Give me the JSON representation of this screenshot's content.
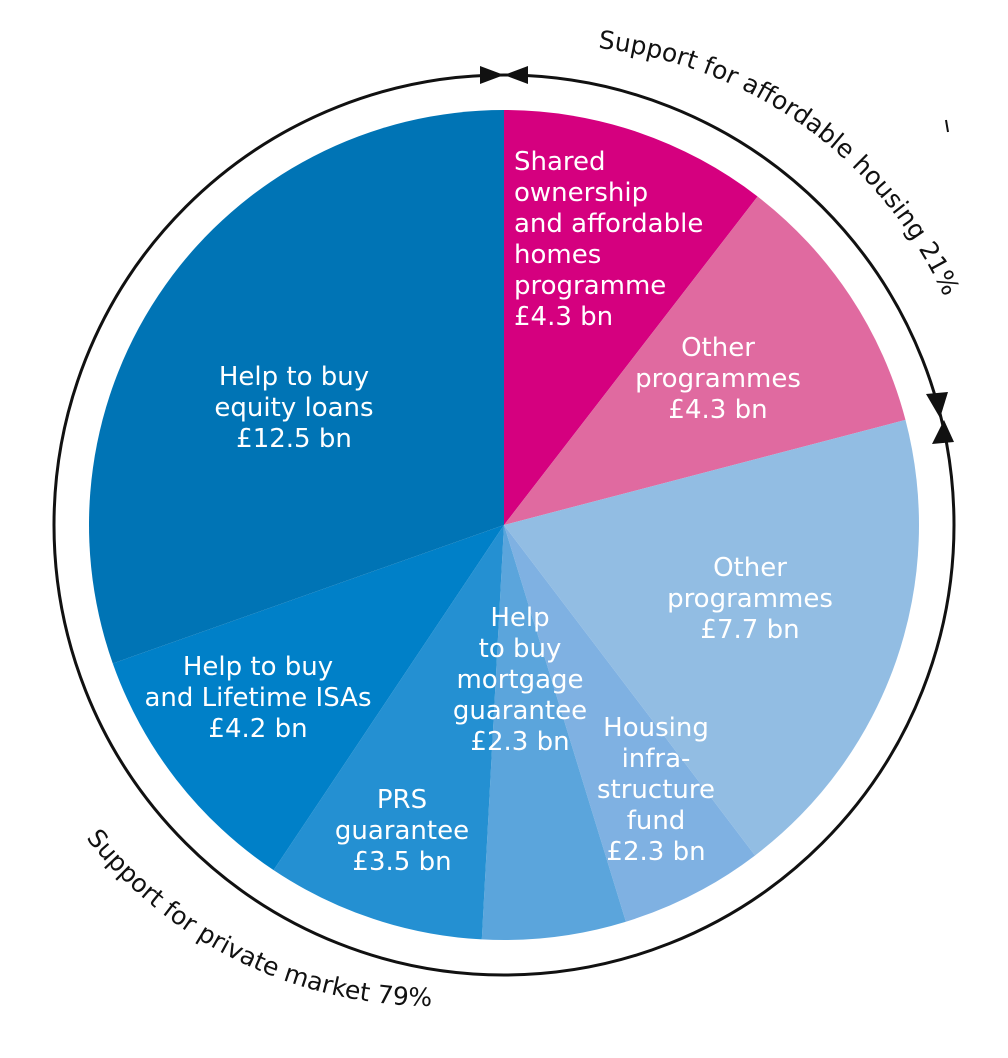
{
  "chart_data": {
    "type": "pie",
    "unit": "£ bn",
    "slices": [
      {
        "name": "shared-ownership",
        "label_lines": [
          "Shared",
          "ownership",
          "and affordable",
          "homes",
          "programme",
          "£4.3 bn"
        ],
        "value": 4.3,
        "color": "#d5007f",
        "group": "affordable"
      },
      {
        "name": "other-programmes-affordable",
        "label_lines": [
          "Other",
          "programmes",
          "£4.3 bn"
        ],
        "value": 4.3,
        "color": "#e06aa0",
        "group": "affordable"
      },
      {
        "name": "other-programmes-private",
        "label_lines": [
          "Other",
          "programmes",
          "£7.7 bn"
        ],
        "value": 7.7,
        "color": "#92bde3",
        "group": "private"
      },
      {
        "name": "housing-infrastructure-fund",
        "label_lines": [
          "Housing",
          "infra-",
          "structure",
          "fund",
          "£2.3 bn"
        ],
        "value": 2.3,
        "color": "#7fb1e2",
        "group": "private"
      },
      {
        "name": "help-to-buy-mortgage-guarantee",
        "label_lines": [
          "Help",
          "to buy",
          "mortgage",
          "guarantee",
          "£2.3 bn"
        ],
        "value": 2.3,
        "color": "#5ba5dc",
        "group": "private"
      },
      {
        "name": "prs-guarantee",
        "label_lines": [
          "PRS",
          "guarantee",
          "£3.5 bn"
        ],
        "value": 3.5,
        "color": "#2490d2",
        "group": "private"
      },
      {
        "name": "help-to-buy-lifetime-isas",
        "label_lines": [
          "Help to buy",
          "and Lifetime ISAs",
          "£4.2 bn"
        ],
        "value": 4.2,
        "color": "#0080c8",
        "group": "private"
      },
      {
        "name": "help-to-buy-equity-loans",
        "label_lines": [
          "Help to buy",
          "equity loans",
          "£12.5 bn"
        ],
        "value": 12.5,
        "color": "#0074b5",
        "group": "private"
      }
    ],
    "groups": [
      {
        "name": "affordable",
        "label": "Support for affordable housing 21%",
        "percent": 21
      },
      {
        "name": "private",
        "label": "Support for private market 79%",
        "percent": 79
      }
    ]
  }
}
